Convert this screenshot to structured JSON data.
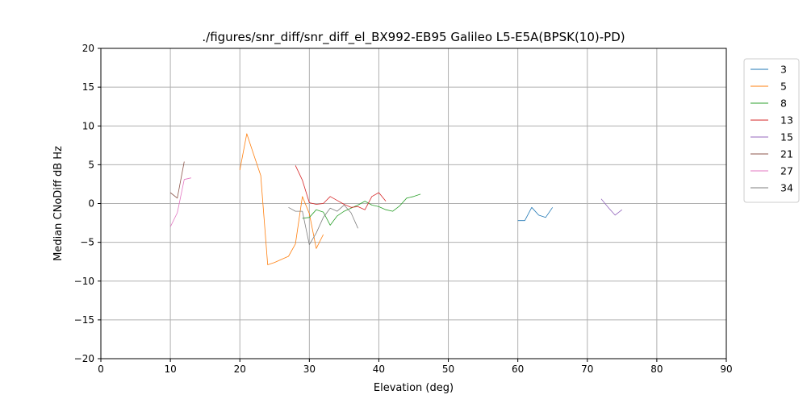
{
  "chart_data": {
    "type": "line",
    "title": "./figures/snr_diff/snr_diff_el_BX992-EB95 Galileo  L5-E5A(BPSK(10)-PD)",
    "xlabel": "Elevation (deg)",
    "ylabel": "Median CNoDiff dB Hz",
    "xlim": [
      0,
      90
    ],
    "ylim": [
      -20,
      20
    ],
    "xticks": [
      0,
      10,
      20,
      30,
      40,
      50,
      60,
      70,
      80,
      90
    ],
    "yticks": [
      -20,
      -15,
      -10,
      -5,
      0,
      5,
      10,
      15,
      20
    ],
    "grid": true,
    "legend_position": "outside-right-top",
    "series": [
      {
        "name": "3",
        "color": "#1f77b4",
        "x": [
          60,
          61,
          62,
          63,
          64,
          65
        ],
        "y": [
          -2.2,
          -2.2,
          -0.5,
          -1.5,
          -1.8,
          -0.5
        ]
      },
      {
        "name": "5",
        "color": "#ff7f0e",
        "x": [
          20,
          21,
          22,
          23,
          24,
          25,
          26,
          27,
          28,
          29,
          30,
          31,
          32
        ],
        "y": [
          4.3,
          9.0,
          6.3,
          3.6,
          -7.9,
          -7.6,
          -7.2,
          -6.8,
          -5.2,
          0.9,
          -1.3,
          -5.8,
          -4.0
        ]
      },
      {
        "name": "8",
        "color": "#2ca02c",
        "x": [
          29,
          30,
          31,
          32,
          33,
          34,
          35,
          36,
          37,
          38,
          39,
          40,
          41,
          42,
          43,
          44,
          45,
          46
        ],
        "y": [
          -1.9,
          -1.8,
          -0.8,
          -1.1,
          -2.8,
          -1.6,
          -1.0,
          -0.6,
          -0.2,
          0.3,
          -0.2,
          -0.4,
          -0.8,
          -1.0,
          -0.3,
          0.7,
          0.9,
          1.2
        ]
      },
      {
        "name": "13",
        "color": "#d62728",
        "x": [
          28,
          29,
          30,
          31,
          32,
          33,
          34,
          35,
          36,
          37,
          38,
          39,
          40,
          41
        ],
        "y": [
          4.9,
          3.0,
          0.1,
          -0.1,
          0.0,
          0.9,
          0.4,
          -0.1,
          -0.5,
          -0.4,
          -0.8,
          0.9,
          1.4,
          0.3
        ]
      },
      {
        "name": "15",
        "color": "#9467bd",
        "x": [
          72,
          73,
          74,
          75
        ],
        "y": [
          0.6,
          -0.5,
          -1.5,
          -0.8
        ]
      },
      {
        "name": "21",
        "color": "#8c564b",
        "x": [
          10,
          11,
          12
        ],
        "y": [
          1.4,
          0.7,
          5.4
        ]
      },
      {
        "name": "27",
        "color": "#e377c2",
        "x": [
          10,
          11,
          12,
          13
        ],
        "y": [
          -3.0,
          -1.2,
          3.1,
          3.3
        ]
      },
      {
        "name": "34",
        "color": "#7f7f7f",
        "x": [
          27,
          28,
          29,
          30,
          31,
          32,
          33,
          34,
          35,
          36,
          37
        ],
        "y": [
          -0.5,
          -1.0,
          -1.0,
          -5.3,
          -3.8,
          -1.8,
          -0.6,
          -1.0,
          -0.2,
          -1.2,
          -3.2
        ]
      }
    ]
  }
}
